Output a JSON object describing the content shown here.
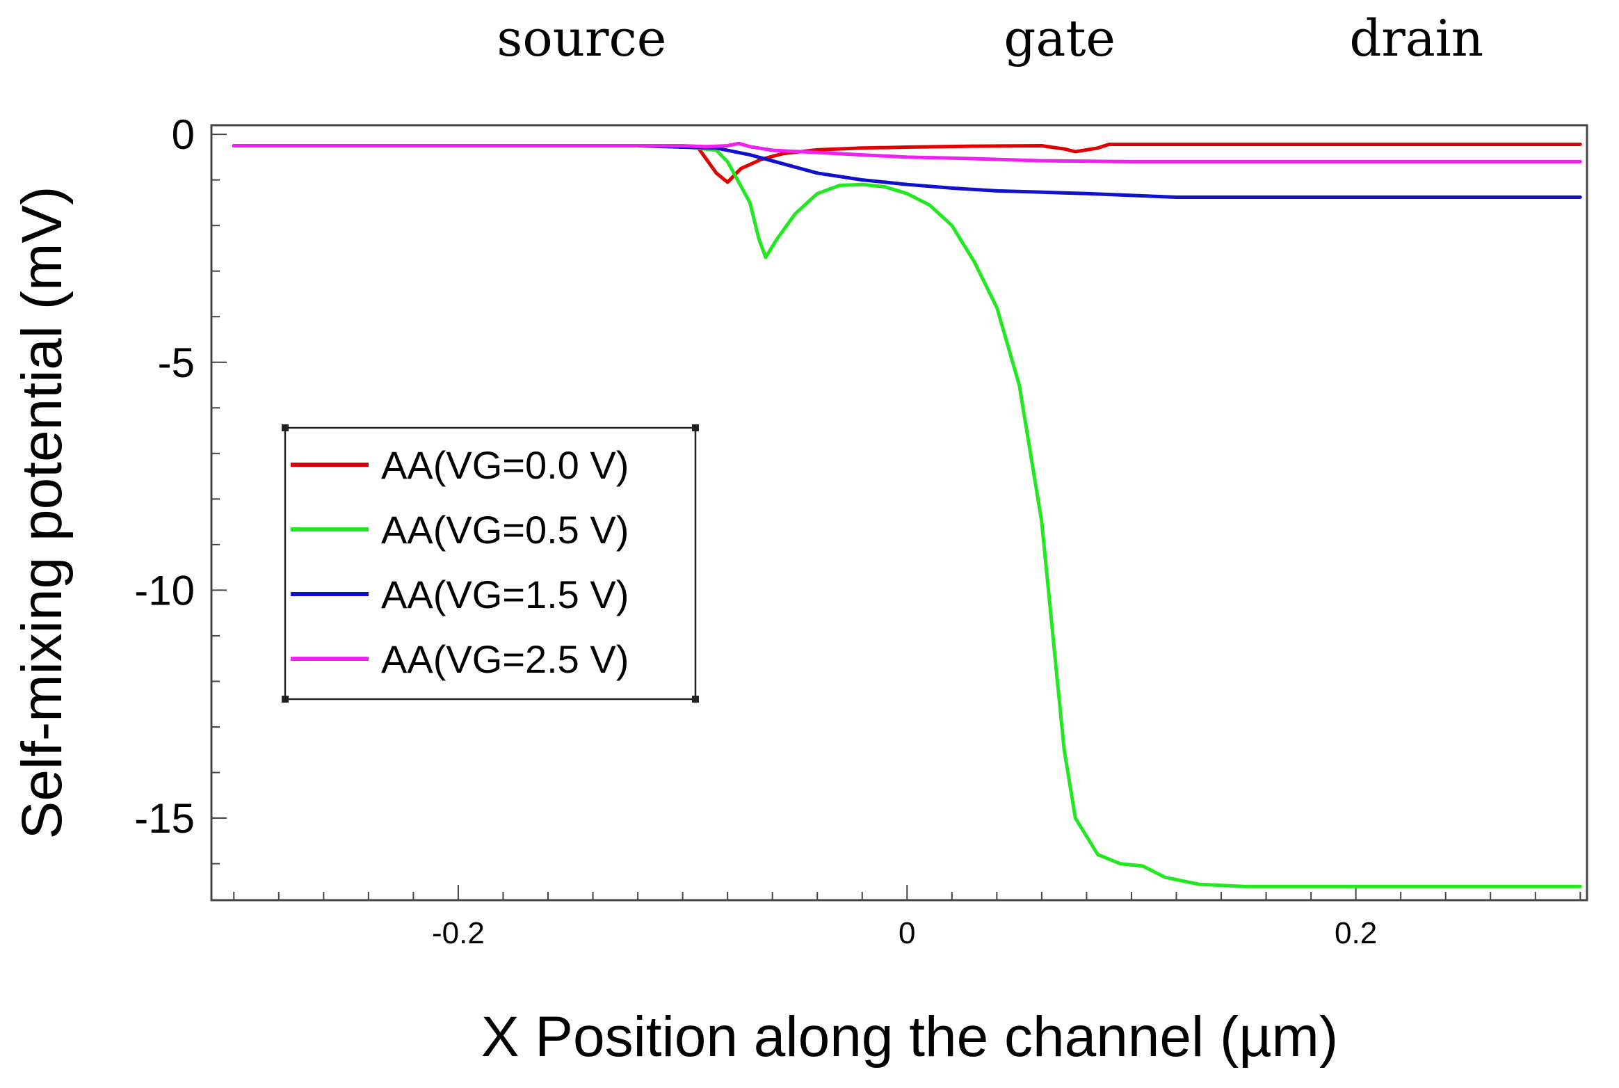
{
  "chart_data": {
    "type": "line",
    "title": "",
    "region_labels": [
      {
        "text": "source",
        "x": -0.145
      },
      {
        "text": "gate",
        "x": 0.068
      },
      {
        "text": "drain",
        "x": 0.227
      }
    ],
    "xlabel": "X Position along the channel  (µm)",
    "ylabel": "Self-mixing potential  (mV)",
    "xlim": [
      -0.31,
      0.303
    ],
    "ylim": [
      -16.8,
      0.2
    ],
    "xticks": [
      -0.2,
      0,
      0.2
    ],
    "xtick_labels": [
      "-0.2",
      "0",
      "0.2"
    ],
    "yticks": [
      0,
      -5,
      -10,
      -15
    ],
    "ytick_labels": [
      "0",
      "-5",
      "-10",
      "-15"
    ],
    "x_minor_step": 0.02,
    "y_minor_step": 1,
    "grid": false,
    "legend_position": "center-left",
    "series": [
      {
        "name": "AA(VG=0.0 V)",
        "color": "#e00000",
        "points": [
          [
            -0.3,
            -0.25
          ],
          [
            -0.12,
            -0.25
          ],
          [
            -0.1,
            -0.27
          ],
          [
            -0.093,
            -0.3
          ],
          [
            -0.085,
            -0.85
          ],
          [
            -0.08,
            -1.05
          ],
          [
            -0.074,
            -0.75
          ],
          [
            -0.065,
            -0.55
          ],
          [
            -0.055,
            -0.42
          ],
          [
            -0.04,
            -0.34
          ],
          [
            -0.02,
            -0.3
          ],
          [
            0.0,
            -0.28
          ],
          [
            0.03,
            -0.26
          ],
          [
            0.06,
            -0.25
          ],
          [
            0.07,
            -0.32
          ],
          [
            0.075,
            -0.38
          ],
          [
            0.085,
            -0.3
          ],
          [
            0.09,
            -0.22
          ],
          [
            0.12,
            -0.22
          ],
          [
            0.2,
            -0.22
          ],
          [
            0.3,
            -0.22
          ]
        ]
      },
      {
        "name": "AA(VG=0.5 V)",
        "color": "#22e822",
        "points": [
          [
            -0.3,
            -0.25
          ],
          [
            -0.12,
            -0.25
          ],
          [
            -0.1,
            -0.27
          ],
          [
            -0.085,
            -0.35
          ],
          [
            -0.08,
            -0.6
          ],
          [
            -0.07,
            -1.5
          ],
          [
            -0.066,
            -2.3
          ],
          [
            -0.063,
            -2.7
          ],
          [
            -0.058,
            -2.3
          ],
          [
            -0.05,
            -1.75
          ],
          [
            -0.04,
            -1.3
          ],
          [
            -0.03,
            -1.12
          ],
          [
            -0.02,
            -1.1
          ],
          [
            -0.01,
            -1.15
          ],
          [
            0.0,
            -1.3
          ],
          [
            0.01,
            -1.55
          ],
          [
            0.02,
            -2.0
          ],
          [
            0.03,
            -2.8
          ],
          [
            0.04,
            -3.8
          ],
          [
            0.05,
            -5.5
          ],
          [
            0.055,
            -7.0
          ],
          [
            0.06,
            -8.5
          ],
          [
            0.065,
            -11.0
          ],
          [
            0.07,
            -13.5
          ],
          [
            0.075,
            -15.0
          ],
          [
            0.085,
            -15.8
          ],
          [
            0.095,
            -16.0
          ],
          [
            0.105,
            -16.05
          ],
          [
            0.115,
            -16.3
          ],
          [
            0.13,
            -16.45
          ],
          [
            0.15,
            -16.5
          ],
          [
            0.2,
            -16.5
          ],
          [
            0.3,
            -16.5
          ]
        ]
      },
      {
        "name": "AA(VG=1.5 V)",
        "color": "#1111cc",
        "points": [
          [
            -0.3,
            -0.25
          ],
          [
            -0.12,
            -0.25
          ],
          [
            -0.1,
            -0.28
          ],
          [
            -0.085,
            -0.3
          ],
          [
            -0.07,
            -0.45
          ],
          [
            -0.055,
            -0.65
          ],
          [
            -0.04,
            -0.85
          ],
          [
            -0.02,
            -1.0
          ],
          [
            0.0,
            -1.1
          ],
          [
            0.02,
            -1.18
          ],
          [
            0.04,
            -1.24
          ],
          [
            0.06,
            -1.27
          ],
          [
            0.08,
            -1.3
          ],
          [
            0.1,
            -1.34
          ],
          [
            0.12,
            -1.38
          ],
          [
            0.2,
            -1.38
          ],
          [
            0.3,
            -1.38
          ]
        ]
      },
      {
        "name": "AA(VG=2.5 V)",
        "color": "#ee22ee",
        "points": [
          [
            -0.3,
            -0.25
          ],
          [
            -0.12,
            -0.25
          ],
          [
            -0.1,
            -0.25
          ],
          [
            -0.09,
            -0.27
          ],
          [
            -0.08,
            -0.25
          ],
          [
            -0.075,
            -0.2
          ],
          [
            -0.07,
            -0.27
          ],
          [
            -0.06,
            -0.35
          ],
          [
            -0.04,
            -0.4
          ],
          [
            -0.02,
            -0.45
          ],
          [
            0.0,
            -0.5
          ],
          [
            0.02,
            -0.52
          ],
          [
            0.04,
            -0.55
          ],
          [
            0.06,
            -0.58
          ],
          [
            0.1,
            -0.6
          ],
          [
            0.2,
            -0.6
          ],
          [
            0.3,
            -0.6
          ]
        ]
      }
    ]
  }
}
